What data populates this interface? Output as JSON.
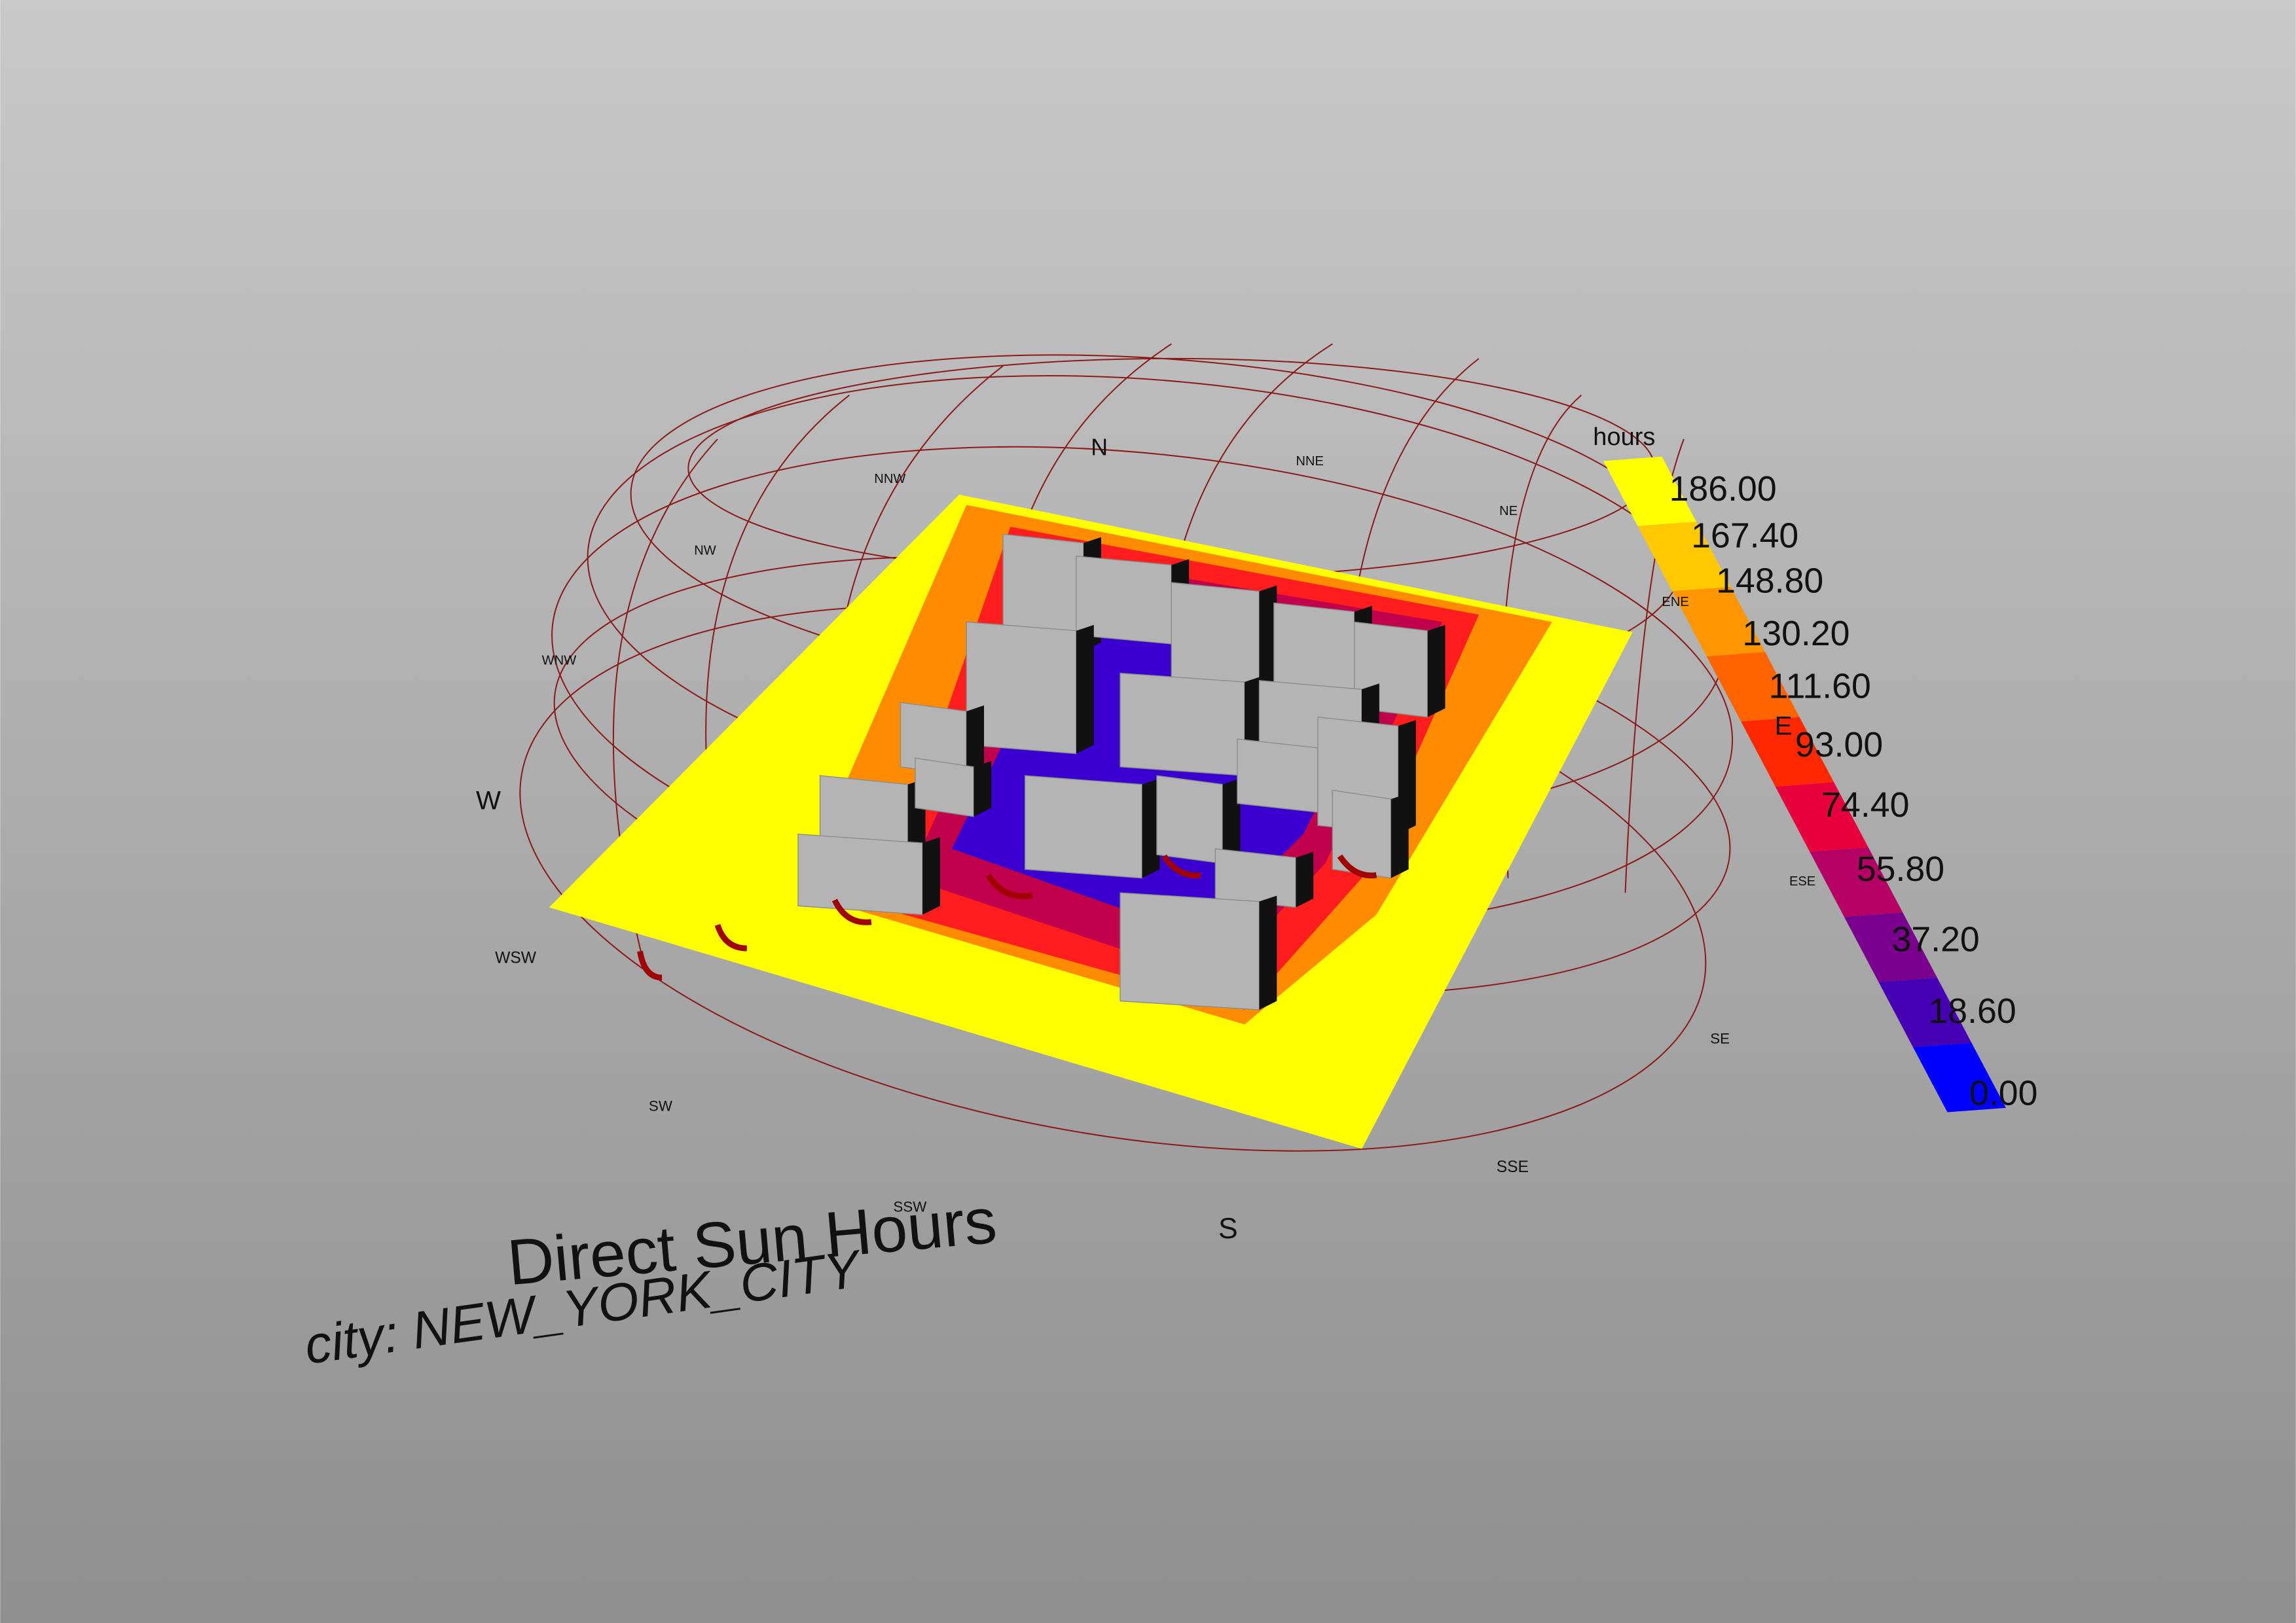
{
  "title": "Direct Sun Hours",
  "subtitle": "city: NEW_YORK_CITY",
  "legend": {
    "title": "hours",
    "labels": [
      "186.00",
      "167.40",
      "148.80",
      "130.20",
      "111.60",
      "93.00",
      "74.40",
      "55.80",
      "37.20",
      "18.60",
      "0.00"
    ]
  },
  "compass": [
    "N",
    "NNE",
    "NE",
    "ENE",
    "E",
    "ESE",
    "SE",
    "SSE",
    "S",
    "SSW",
    "SW",
    "WSW",
    "W",
    "WNW",
    "NW",
    "NNW"
  ]
}
